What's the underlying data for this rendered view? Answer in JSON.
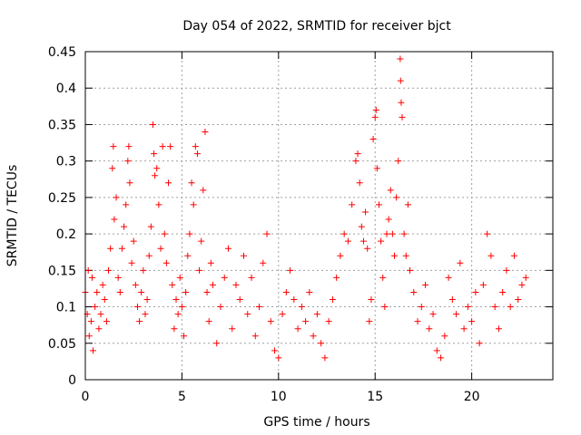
{
  "chart_data": {
    "type": "scatter",
    "title": "Day 054 of 2022, SRMTID for receiver bjct",
    "xlabel": "GPS time / hours",
    "ylabel": "SRMTID / TECUs",
    "xlim": [
      0,
      24.2
    ],
    "ylim": [
      0,
      0.45
    ],
    "xticks": [
      0,
      5,
      10,
      15,
      20
    ],
    "xtick_labels": [
      "0",
      "5",
      "10",
      "15",
      "20"
    ],
    "yticks": [
      0,
      0.05,
      0.1,
      0.15,
      0.2,
      0.25,
      0.3,
      0.35,
      0.4,
      0.45
    ],
    "ytick_labels": [
      "0",
      "0.05",
      "0.1",
      "0.15",
      "0.2",
      "0.25",
      "0.3",
      "0.35",
      "0.4",
      "0.45"
    ],
    "grid": true,
    "marker": "+",
    "color": "#ff0000",
    "series": [
      {
        "name": "SRMTID",
        "points": [
          [
            0.0,
            0.12
          ],
          [
            0.1,
            0.09
          ],
          [
            0.15,
            0.15
          ],
          [
            0.2,
            0.06
          ],
          [
            0.3,
            0.08
          ],
          [
            0.35,
            0.14
          ],
          [
            0.4,
            0.04
          ],
          [
            0.5,
            0.1
          ],
          [
            0.6,
            0.12
          ],
          [
            0.7,
            0.07
          ],
          [
            0.8,
            0.09
          ],
          [
            0.9,
            0.13
          ],
          [
            1.0,
            0.11
          ],
          [
            1.1,
            0.08
          ],
          [
            1.2,
            0.15
          ],
          [
            1.3,
            0.18
          ],
          [
            1.4,
            0.29
          ],
          [
            1.45,
            0.32
          ],
          [
            1.5,
            0.22
          ],
          [
            1.6,
            0.25
          ],
          [
            1.7,
            0.14
          ],
          [
            1.8,
            0.12
          ],
          [
            1.9,
            0.18
          ],
          [
            2.0,
            0.21
          ],
          [
            2.1,
            0.24
          ],
          [
            2.2,
            0.3
          ],
          [
            2.25,
            0.32
          ],
          [
            2.3,
            0.27
          ],
          [
            2.4,
            0.16
          ],
          [
            2.5,
            0.19
          ],
          [
            2.6,
            0.13
          ],
          [
            2.7,
            0.1
          ],
          [
            2.8,
            0.08
          ],
          [
            2.9,
            0.12
          ],
          [
            3.0,
            0.15
          ],
          [
            3.1,
            0.09
          ],
          [
            3.2,
            0.11
          ],
          [
            3.3,
            0.17
          ],
          [
            3.4,
            0.21
          ],
          [
            3.5,
            0.35
          ],
          [
            3.55,
            0.31
          ],
          [
            3.6,
            0.28
          ],
          [
            3.7,
            0.29
          ],
          [
            3.8,
            0.24
          ],
          [
            3.9,
            0.18
          ],
          [
            4.0,
            0.32
          ],
          [
            4.1,
            0.2
          ],
          [
            4.2,
            0.16
          ],
          [
            4.3,
            0.27
          ],
          [
            4.4,
            0.32
          ],
          [
            4.5,
            0.13
          ],
          [
            4.6,
            0.07
          ],
          [
            4.7,
            0.11
          ],
          [
            4.8,
            0.09
          ],
          [
            4.9,
            0.14
          ],
          [
            5.0,
            0.1
          ],
          [
            5.1,
            0.06
          ],
          [
            5.2,
            0.12
          ],
          [
            5.3,
            0.17
          ],
          [
            5.4,
            0.2
          ],
          [
            5.5,
            0.27
          ],
          [
            5.6,
            0.24
          ],
          [
            5.7,
            0.32
          ],
          [
            5.8,
            0.31
          ],
          [
            5.9,
            0.15
          ],
          [
            6.0,
            0.19
          ],
          [
            6.1,
            0.26
          ],
          [
            6.2,
            0.34
          ],
          [
            6.3,
            0.12
          ],
          [
            6.4,
            0.08
          ],
          [
            6.5,
            0.16
          ],
          [
            6.6,
            0.13
          ],
          [
            6.8,
            0.05
          ],
          [
            7.0,
            0.1
          ],
          [
            7.2,
            0.14
          ],
          [
            7.4,
            0.18
          ],
          [
            7.6,
            0.07
          ],
          [
            7.8,
            0.13
          ],
          [
            8.0,
            0.11
          ],
          [
            8.2,
            0.17
          ],
          [
            8.4,
            0.09
          ],
          [
            8.6,
            0.14
          ],
          [
            8.8,
            0.06
          ],
          [
            9.0,
            0.1
          ],
          [
            9.2,
            0.16
          ],
          [
            9.4,
            0.2
          ],
          [
            9.6,
            0.08
          ],
          [
            9.8,
            0.04
          ],
          [
            10.0,
            0.03
          ],
          [
            10.2,
            0.09
          ],
          [
            10.4,
            0.12
          ],
          [
            10.6,
            0.15
          ],
          [
            10.8,
            0.11
          ],
          [
            11.0,
            0.07
          ],
          [
            11.2,
            0.1
          ],
          [
            11.4,
            0.08
          ],
          [
            11.6,
            0.12
          ],
          [
            11.8,
            0.06
          ],
          [
            12.0,
            0.09
          ],
          [
            12.2,
            0.05
          ],
          [
            12.4,
            0.03
          ],
          [
            12.6,
            0.08
          ],
          [
            12.8,
            0.11
          ],
          [
            13.0,
            0.14
          ],
          [
            13.2,
            0.17
          ],
          [
            13.4,
            0.2
          ],
          [
            13.6,
            0.19
          ],
          [
            13.8,
            0.24
          ],
          [
            14.0,
            0.3
          ],
          [
            14.1,
            0.31
          ],
          [
            14.2,
            0.27
          ],
          [
            14.3,
            0.21
          ],
          [
            14.4,
            0.19
          ],
          [
            14.5,
            0.23
          ],
          [
            14.6,
            0.18
          ],
          [
            14.7,
            0.08
          ],
          [
            14.8,
            0.11
          ],
          [
            14.9,
            0.33
          ],
          [
            15.0,
            0.36
          ],
          [
            15.05,
            0.37
          ],
          [
            15.1,
            0.29
          ],
          [
            15.2,
            0.24
          ],
          [
            15.3,
            0.19
          ],
          [
            15.4,
            0.14
          ],
          [
            15.5,
            0.1
          ],
          [
            15.6,
            0.2
          ],
          [
            15.7,
            0.22
          ],
          [
            15.8,
            0.26
          ],
          [
            15.9,
            0.2
          ],
          [
            16.0,
            0.17
          ],
          [
            16.1,
            0.25
          ],
          [
            16.2,
            0.3
          ],
          [
            16.3,
            0.44
          ],
          [
            16.32,
            0.41
          ],
          [
            16.35,
            0.38
          ],
          [
            16.4,
            0.36
          ],
          [
            16.5,
            0.2
          ],
          [
            16.6,
            0.17
          ],
          [
            16.7,
            0.24
          ],
          [
            16.8,
            0.15
          ],
          [
            17.0,
            0.12
          ],
          [
            17.2,
            0.08
          ],
          [
            17.4,
            0.1
          ],
          [
            17.6,
            0.13
          ],
          [
            17.8,
            0.07
          ],
          [
            18.0,
            0.09
          ],
          [
            18.2,
            0.04
          ],
          [
            18.4,
            0.03
          ],
          [
            18.6,
            0.06
          ],
          [
            18.8,
            0.14
          ],
          [
            19.0,
            0.11
          ],
          [
            19.2,
            0.09
          ],
          [
            19.4,
            0.16
          ],
          [
            19.6,
            0.07
          ],
          [
            19.8,
            0.1
          ],
          [
            20.0,
            0.08
          ],
          [
            20.2,
            0.12
          ],
          [
            20.4,
            0.05
          ],
          [
            20.6,
            0.13
          ],
          [
            20.8,
            0.2
          ],
          [
            21.0,
            0.17
          ],
          [
            21.2,
            0.1
          ],
          [
            21.4,
            0.07
          ],
          [
            21.6,
            0.12
          ],
          [
            21.8,
            0.15
          ],
          [
            22.0,
            0.1
          ],
          [
            22.2,
            0.17
          ],
          [
            22.4,
            0.11
          ],
          [
            22.6,
            0.13
          ],
          [
            22.8,
            0.14
          ]
        ]
      }
    ]
  }
}
